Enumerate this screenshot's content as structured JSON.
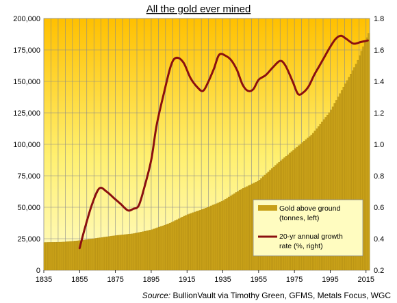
{
  "chart_data": {
    "type": "bar+line",
    "title": "All the gold ever mined",
    "source_prefix": "Source:",
    "source_text": " BullionVault via Timothy Green, GFMS, Metals Focus, WGC",
    "x_ticks": [
      "1835",
      "1855",
      "1875",
      "1895",
      "1915",
      "1935",
      "1955",
      "1975",
      "1995",
      "2015"
    ],
    "y_left_ticks": [
      "0",
      "25,000",
      "50,000",
      "75,000",
      "100,000",
      "125,000",
      "150,000",
      "175,000",
      "200,000"
    ],
    "y_right_ticks": [
      "0.2",
      "0.4",
      "0.6",
      "0.8",
      "1.0",
      "1.2",
      "1.4",
      "1.6",
      "1.8"
    ],
    "x_range": [
      1835,
      2017
    ],
    "y_left_range": [
      0,
      200000
    ],
    "y_right_range": [
      0.2,
      1.8
    ],
    "grid": true,
    "colors": {
      "bar": "#c8a018",
      "line": "#8b1010",
      "bg_top": "#ffc000",
      "bg_bottom": "#fffcc0"
    },
    "series": [
      {
        "name": "Gold above ground",
        "name_line2": "(tonnes, left)",
        "type": "bar",
        "axis": "left",
        "points": [
          [
            1835,
            22000
          ],
          [
            1845,
            22300
          ],
          [
            1855,
            23500
          ],
          [
            1865,
            25500
          ],
          [
            1875,
            27500
          ],
          [
            1885,
            29000
          ],
          [
            1895,
            32000
          ],
          [
            1905,
            37000
          ],
          [
            1915,
            44000
          ],
          [
            1925,
            49000
          ],
          [
            1935,
            55000
          ],
          [
            1945,
            64000
          ],
          [
            1955,
            71000
          ],
          [
            1965,
            84000
          ],
          [
            1975,
            96000
          ],
          [
            1985,
            108000
          ],
          [
            1995,
            126000
          ],
          [
            2005,
            152000
          ],
          [
            2010,
            165000
          ],
          [
            2015,
            183000
          ],
          [
            2017,
            190000
          ]
        ]
      },
      {
        "name": "20-yr annual growth",
        "name_line2": "rate (%, right)",
        "type": "line",
        "axis": "right",
        "points": [
          [
            1855,
            0.34
          ],
          [
            1858,
            0.47
          ],
          [
            1862,
            0.62
          ],
          [
            1866,
            0.72
          ],
          [
            1870,
            0.7
          ],
          [
            1874,
            0.66
          ],
          [
            1878,
            0.62
          ],
          [
            1882,
            0.58
          ],
          [
            1885,
            0.59
          ],
          [
            1888,
            0.61
          ],
          [
            1891,
            0.72
          ],
          [
            1895,
            0.9
          ],
          [
            1898,
            1.12
          ],
          [
            1902,
            1.32
          ],
          [
            1906,
            1.5
          ],
          [
            1909,
            1.55
          ],
          [
            1913,
            1.52
          ],
          [
            1917,
            1.42
          ],
          [
            1921,
            1.36
          ],
          [
            1924,
            1.34
          ],
          [
            1927,
            1.4
          ],
          [
            1930,
            1.48
          ],
          [
            1933,
            1.57
          ],
          [
            1937,
            1.56
          ],
          [
            1940,
            1.53
          ],
          [
            1943,
            1.47
          ],
          [
            1946,
            1.38
          ],
          [
            1949,
            1.34
          ],
          [
            1952,
            1.35
          ],
          [
            1955,
            1.41
          ],
          [
            1959,
            1.44
          ],
          [
            1963,
            1.49
          ],
          [
            1967,
            1.53
          ],
          [
            1970,
            1.5
          ],
          [
            1974,
            1.4
          ],
          [
            1977,
            1.32
          ],
          [
            1980,
            1.33
          ],
          [
            1983,
            1.37
          ],
          [
            1986,
            1.44
          ],
          [
            1989,
            1.5
          ],
          [
            1992,
            1.56
          ],
          [
            1995,
            1.62
          ],
          [
            1998,
            1.67
          ],
          [
            2001,
            1.69
          ],
          [
            2004,
            1.67
          ],
          [
            2008,
            1.64
          ],
          [
            2012,
            1.65
          ],
          [
            2016,
            1.66
          ]
        ]
      }
    ]
  }
}
